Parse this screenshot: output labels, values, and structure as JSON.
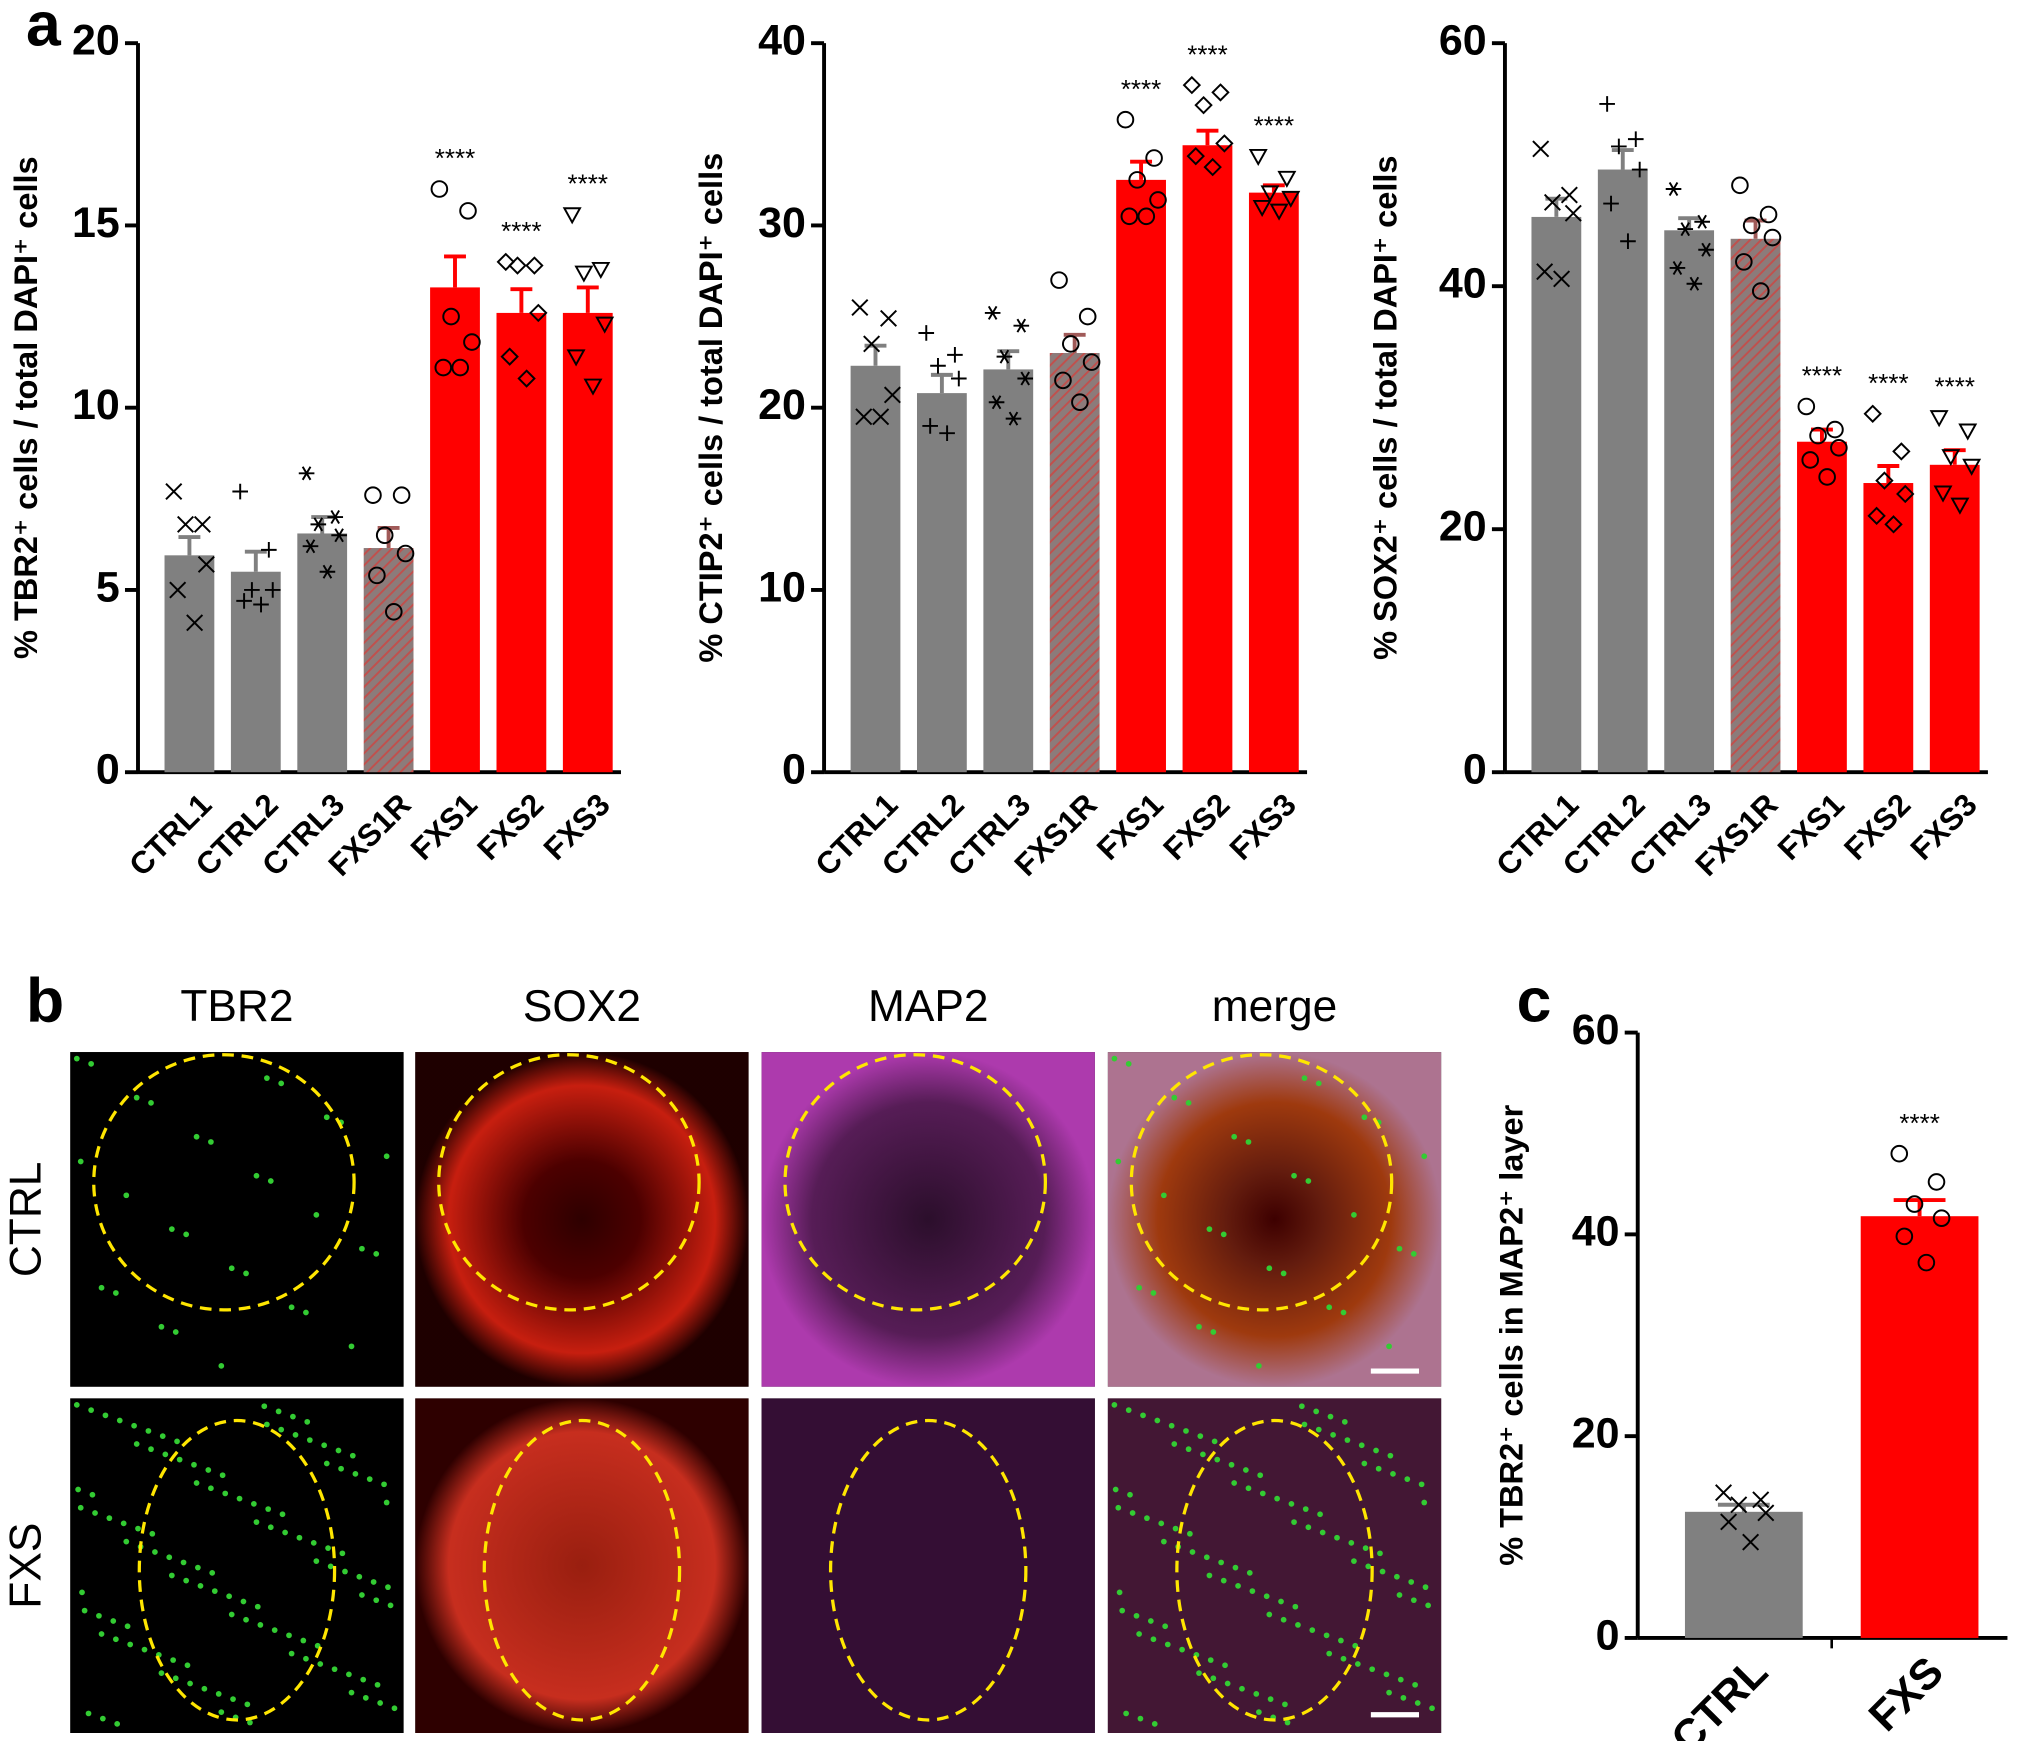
{
  "panel_labels": [
    "a",
    "b",
    "c"
  ],
  "image_grid": {
    "columns": [
      "TBR2",
      "SOX2",
      "MAP2",
      "merge"
    ],
    "rows": [
      "CTRL",
      "FXS"
    ]
  },
  "chart_data": [
    {
      "type": "bar",
      "ylabel": "% TBR2⁺ cells / total DAPI⁺ cells",
      "categories": [
        "CTRL1",
        "CTRL2",
        "CTRL3",
        "FXS1R",
        "FXS1",
        "FXS2",
        "FXS3"
      ],
      "values": [
        5.95,
        5.5,
        6.55,
        6.15,
        13.3,
        12.6,
        12.6
      ],
      "errors": [
        0.5,
        0.55,
        0.45,
        0.55,
        0.85,
        0.65,
        0.7
      ],
      "points": [
        [
          7.7,
          6.8,
          6.8,
          5.7,
          5.0,
          4.1
        ],
        [
          7.7,
          6.1,
          5.0,
          5.0,
          4.7,
          4.6
        ],
        [
          8.2,
          7.0,
          6.8,
          6.5,
          6.2,
          5.5
        ],
        [
          7.6,
          7.6,
          6.5,
          6.0,
          5.4,
          4.4
        ],
        [
          16.0,
          15.4,
          12.5,
          11.8,
          11.1,
          11.1
        ],
        [
          14.0,
          13.9,
          13.9,
          12.6,
          11.4,
          10.8
        ],
        [
          15.3,
          13.8,
          13.7,
          12.3,
          11.4,
          10.6
        ]
      ],
      "markers": [
        "x",
        "+",
        "*",
        "o",
        "o",
        "diamond",
        "triangle"
      ],
      "colors": [
        "#808080",
        "#808080",
        "#808080",
        "#a0605c",
        "#ff0000",
        "#ff0000",
        "#ff0000"
      ],
      "hatch": [
        false,
        false,
        false,
        true,
        false,
        false,
        false
      ],
      "annotations": [
        null,
        null,
        null,
        null,
        "****",
        "****",
        "****"
      ],
      "ylim": [
        0,
        20
      ],
      "yticks": [
        0,
        5,
        10,
        15,
        20
      ]
    },
    {
      "type": "bar",
      "ylabel": "% CTIP2⁺ cells / total DAPI⁺ cells",
      "categories": [
        "CTRL1",
        "CTRL2",
        "CTRL3",
        "FXS1R",
        "FXS1",
        "FXS2",
        "FXS3"
      ],
      "values": [
        22.3,
        20.8,
        22.1,
        23.0,
        32.5,
        34.4,
        31.8
      ],
      "errors": [
        1.1,
        1.0,
        1.0,
        1.0,
        1.0,
        0.8,
        0.4
      ],
      "points": [
        [
          25.5,
          24.9,
          23.5,
          20.7,
          19.5,
          19.5
        ],
        [
          24.1,
          22.9,
          22.3,
          21.6,
          19.0,
          18.6
        ],
        [
          25.2,
          24.5,
          22.8,
          21.6,
          20.3,
          19.4
        ],
        [
          27.0,
          25.0,
          23.5,
          22.5,
          21.5,
          20.3
        ],
        [
          35.8,
          33.7,
          32.5,
          31.4,
          30.5,
          30.5
        ],
        [
          37.7,
          37.3,
          36.6,
          34.5,
          33.8,
          33.2
        ],
        [
          33.8,
          32.6,
          31.8,
          31.5,
          31.0,
          30.8
        ]
      ],
      "markers": [
        "x",
        "+",
        "*",
        "o",
        "o",
        "diamond",
        "triangle"
      ],
      "colors": [
        "#808080",
        "#808080",
        "#808080",
        "#a0605c",
        "#ff0000",
        "#ff0000",
        "#ff0000"
      ],
      "hatch": [
        false,
        false,
        false,
        true,
        false,
        false,
        false
      ],
      "annotations": [
        null,
        null,
        null,
        null,
        "****",
        "****",
        "****"
      ],
      "ylim": [
        0,
        40
      ],
      "yticks": [
        0,
        10,
        20,
        30,
        40
      ]
    },
    {
      "type": "bar",
      "ylabel": "% SOX2⁺ cells / total DAPI⁺ cells",
      "categories": [
        "CTRL1",
        "CTRL2",
        "CTRL3",
        "FXS1R",
        "FXS1",
        "FXS2",
        "FXS3"
      ],
      "values": [
        45.7,
        49.6,
        44.6,
        43.9,
        27.2,
        23.8,
        25.3
      ],
      "errors": [
        1.5,
        1.6,
        1.0,
        1.5,
        1.0,
        1.4,
        1.2
      ],
      "points": [
        [
          51.3,
          47.5,
          46.9,
          46.0,
          41.2,
          40.6
        ],
        [
          55.0,
          52.1,
          51.5,
          49.6,
          46.8,
          43.7
        ],
        [
          48.0,
          45.3,
          44.7,
          43.0,
          41.5,
          40.2
        ],
        [
          48.3,
          45.9,
          45.0,
          44.0,
          42.0,
          39.6
        ],
        [
          30.1,
          28.2,
          27.7,
          26.7,
          25.7,
          24.3
        ],
        [
          29.5,
          26.4,
          24.0,
          22.9,
          21.1,
          20.4
        ],
        [
          29.2,
          28.1,
          26.0,
          25.2,
          23.0,
          22.0
        ]
      ],
      "markers": [
        "x",
        "+",
        "*",
        "o",
        "o",
        "diamond",
        "triangle"
      ],
      "colors": [
        "#808080",
        "#808080",
        "#808080",
        "#a0605c",
        "#ff0000",
        "#ff0000",
        "#ff0000"
      ],
      "hatch": [
        false,
        false,
        false,
        true,
        false,
        false,
        false
      ],
      "annotations": [
        null,
        null,
        null,
        null,
        "****",
        "****",
        "****"
      ],
      "ylim": [
        0,
        60
      ],
      "yticks": [
        0,
        20,
        40,
        60
      ]
    },
    {
      "type": "bar",
      "ylabel": "% TBR2⁺ cells in MAP2⁺ layer",
      "categories": [
        "CTRL",
        "FXS"
      ],
      "values": [
        12.5,
        41.8
      ],
      "errors": [
        0.7,
        1.6
      ],
      "points": [
        [
          14.4,
          13.7,
          13.2,
          12.4,
          11.5,
          9.5
        ],
        [
          48.0,
          45.2,
          43.0,
          41.6,
          39.8,
          37.2
        ]
      ],
      "markers": [
        "x",
        "o"
      ],
      "colors": [
        "#808080",
        "#ff0000"
      ],
      "hatch": [
        false,
        false
      ],
      "annotations": [
        null,
        "****"
      ],
      "ylim": [
        0,
        60
      ],
      "yticks": [
        0,
        20,
        40,
        60
      ]
    }
  ]
}
